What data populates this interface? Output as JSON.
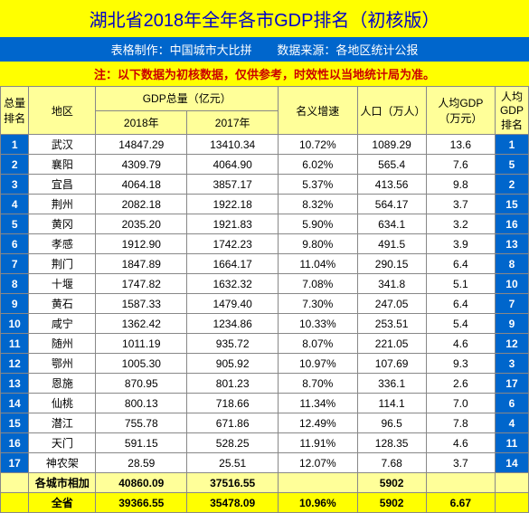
{
  "title": "湖北省2018年全年各市GDP排名（初核版）",
  "subtitle_left": "表格制作：中国城市大比拼",
  "subtitle_right": "数据来源：各地区统计公报",
  "note": "注：以下数据为初核数据，仅供参考，时效性以当地统计局为准。",
  "headers": {
    "rank": "总量排名",
    "region": "地区",
    "gdp_total": "GDP总量（亿元）",
    "gdp2018": "2018年",
    "gdp2017": "2017年",
    "growth": "名义增速",
    "population": "人口（万人）",
    "per_gdp": "人均GDP（万元）",
    "per_rank": "人均GDP排名"
  },
  "rows": [
    {
      "rank": "1",
      "region": "武汉",
      "gdp2018": "14847.29",
      "gdp2017": "13410.34",
      "growth": "10.72%",
      "pop": "1089.29",
      "pergdp": "13.6",
      "perrank": "1"
    },
    {
      "rank": "2",
      "region": "襄阳",
      "gdp2018": "4309.79",
      "gdp2017": "4064.90",
      "growth": "6.02%",
      "pop": "565.4",
      "pergdp": "7.6",
      "perrank": "5"
    },
    {
      "rank": "3",
      "region": "宜昌",
      "gdp2018": "4064.18",
      "gdp2017": "3857.17",
      "growth": "5.37%",
      "pop": "413.56",
      "pergdp": "9.8",
      "perrank": "2"
    },
    {
      "rank": "4",
      "region": "荆州",
      "gdp2018": "2082.18",
      "gdp2017": "1922.18",
      "growth": "8.32%",
      "pop": "564.17",
      "pergdp": "3.7",
      "perrank": "15"
    },
    {
      "rank": "5",
      "region": "黄冈",
      "gdp2018": "2035.20",
      "gdp2017": "1921.83",
      "growth": "5.90%",
      "pop": "634.1",
      "pergdp": "3.2",
      "perrank": "16"
    },
    {
      "rank": "6",
      "region": "孝感",
      "gdp2018": "1912.90",
      "gdp2017": "1742.23",
      "growth": "9.80%",
      "pop": "491.5",
      "pergdp": "3.9",
      "perrank": "13"
    },
    {
      "rank": "7",
      "region": "荆门",
      "gdp2018": "1847.89",
      "gdp2017": "1664.17",
      "growth": "11.04%",
      "pop": "290.15",
      "pergdp": "6.4",
      "perrank": "8"
    },
    {
      "rank": "8",
      "region": "十堰",
      "gdp2018": "1747.82",
      "gdp2017": "1632.32",
      "growth": "7.08%",
      "pop": "341.8",
      "pergdp": "5.1",
      "perrank": "10"
    },
    {
      "rank": "9",
      "region": "黄石",
      "gdp2018": "1587.33",
      "gdp2017": "1479.40",
      "growth": "7.30%",
      "pop": "247.05",
      "pergdp": "6.4",
      "perrank": "7"
    },
    {
      "rank": "10",
      "region": "咸宁",
      "gdp2018": "1362.42",
      "gdp2017": "1234.86",
      "growth": "10.33%",
      "pop": "253.51",
      "pergdp": "5.4",
      "perrank": "9"
    },
    {
      "rank": "11",
      "region": "随州",
      "gdp2018": "1011.19",
      "gdp2017": "935.72",
      "growth": "8.07%",
      "pop": "221.05",
      "pergdp": "4.6",
      "perrank": "12"
    },
    {
      "rank": "12",
      "region": "鄂州",
      "gdp2018": "1005.30",
      "gdp2017": "905.92",
      "growth": "10.97%",
      "pop": "107.69",
      "pergdp": "9.3",
      "perrank": "3"
    },
    {
      "rank": "13",
      "region": "恩施",
      "gdp2018": "870.95",
      "gdp2017": "801.23",
      "growth": "8.70%",
      "pop": "336.1",
      "pergdp": "2.6",
      "perrank": "17"
    },
    {
      "rank": "14",
      "region": "仙桃",
      "gdp2018": "800.13",
      "gdp2017": "718.66",
      "growth": "11.34%",
      "pop": "114.1",
      "pergdp": "7.0",
      "perrank": "6"
    },
    {
      "rank": "15",
      "region": "潜江",
      "gdp2018": "755.78",
      "gdp2017": "671.86",
      "growth": "12.49%",
      "pop": "96.5",
      "pergdp": "7.8",
      "perrank": "4"
    },
    {
      "rank": "16",
      "region": "天门",
      "gdp2018": "591.15",
      "gdp2017": "528.25",
      "growth": "11.91%",
      "pop": "128.35",
      "pergdp": "4.6",
      "perrank": "11"
    },
    {
      "rank": "17",
      "region": "神农架",
      "gdp2018": "28.59",
      "gdp2017": "25.51",
      "growth": "12.07%",
      "pop": "7.68",
      "pergdp": "3.7",
      "perrank": "14"
    }
  ],
  "sumrow": {
    "region": "各城市相加",
    "gdp2018": "40860.09",
    "gdp2017": "37516.55",
    "growth": "",
    "pop": "5902",
    "pergdp": "",
    "perrank": ""
  },
  "provrow": {
    "region": "全省",
    "gdp2018": "39366.55",
    "gdp2017": "35478.09",
    "growth": "10.96%",
    "pop": "5902",
    "pergdp": "6.67",
    "perrank": ""
  },
  "colors": {
    "title_bg": "#ffff00",
    "title_fg": "#0000cc",
    "sub_bg": "#0066cc",
    "sub_fg": "#ffffff",
    "note_fg": "#cc0000",
    "header_bg": "#ffff99",
    "rank_bg": "#0066cc",
    "rank_fg": "#ffffff"
  }
}
